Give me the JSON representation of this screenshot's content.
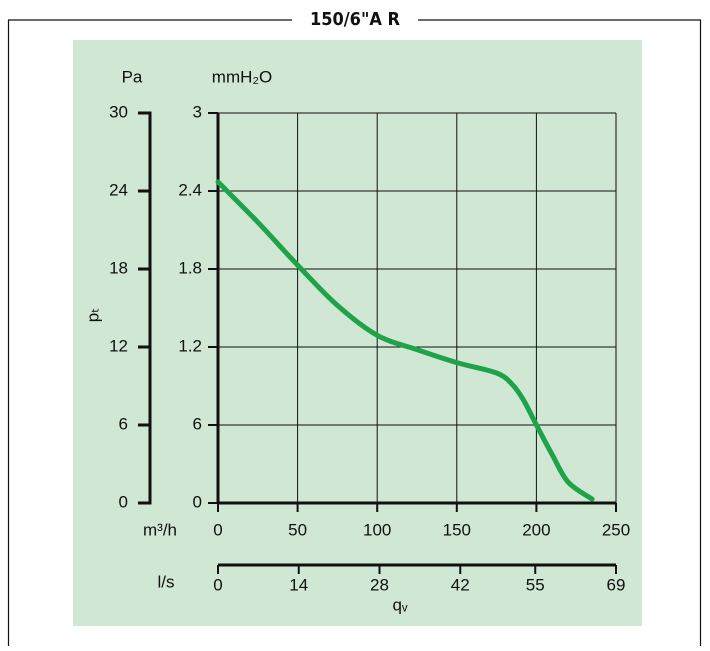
{
  "chart_data": {
    "type": "line",
    "title": "150/6\"A R",
    "y_label_pa": "Pa",
    "y_label_mm": "mmH₂O",
    "y_title": "pₜ",
    "x_label_m3": "m³/h",
    "x_label_ls": "l/s",
    "x_title": "qᵥ",
    "x": [
      0,
      25,
      50,
      75,
      100,
      125,
      150,
      175,
      185,
      192,
      200,
      210,
      220,
      235
    ],
    "series": [
      {
        "color": "#1fa34a",
        "values": [
          2.47,
          2.16,
          1.83,
          1.52,
          1.29,
          1.18,
          1.08,
          1.0,
          0.91,
          0.79,
          0.6,
          0.37,
          0.16,
          0.03
        ]
      }
    ],
    "xlim": [
      0,
      250
    ],
    "xticks": [
      0,
      50,
      100,
      150,
      200,
      250
    ],
    "x2lim": [
      0,
      69
    ],
    "x2ticks": [
      0,
      14,
      28,
      42,
      55,
      69
    ],
    "ylim": [
      0,
      3
    ],
    "yticks": [
      0,
      {
        "value": 0.6,
        "label": "6"
      },
      1.2,
      1.8,
      2.4,
      3
    ],
    "y2lim": [
      0,
      30
    ],
    "y2ticks": [
      0,
      6,
      12,
      18,
      24,
      30
    ],
    "grid": true
  }
}
